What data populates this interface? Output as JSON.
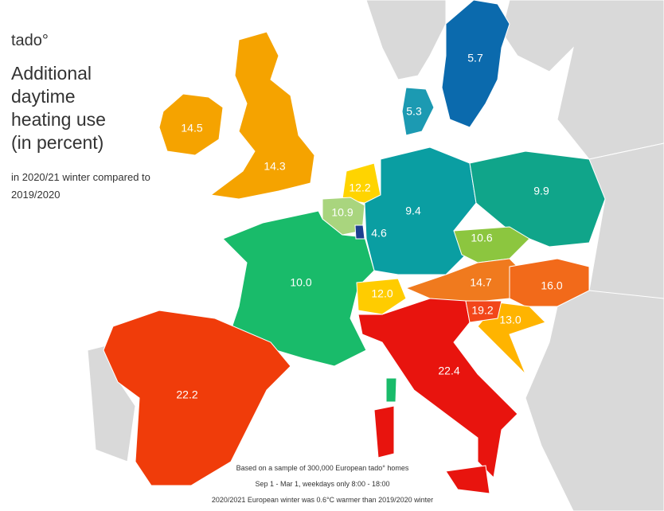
{
  "brand": "tado°",
  "title": "Additional daytime heating use (in percent)",
  "subtitle": "in 2020/21 winter compared to 2019/2020",
  "footnotes": [
    "Based on a sample of 300,000 European tado° homes",
    "Sep 1 - Mar 1, weekdays only 8:00 - 18:00",
    "2020/2021 European winter was 0.6°C warmer than 2019/2020 winter"
  ],
  "regions": [
    {
      "label": "14.5",
      "color": "#f5a300"
    },
    {
      "label": "14.3",
      "color": "#f5a300"
    },
    {
      "label": "5.7",
      "color": "#0b6aad"
    },
    {
      "label": "5.3",
      "color": "#1c9ab2"
    },
    {
      "label": "12.2",
      "color": "#ffd400"
    },
    {
      "label": "10.9",
      "color": "#a9d57e"
    },
    {
      "label": "4.6",
      "color": "#1d3f8f"
    },
    {
      "label": "9.4",
      "color": "#0a9ea2"
    },
    {
      "label": "9.9",
      "color": "#10a58a"
    },
    {
      "label": "10.6",
      "color": "#8cc63f"
    },
    {
      "label": "10.0",
      "color": "#19bb6a"
    },
    {
      "label": "12.0",
      "color": "#ffcc00"
    },
    {
      "label": "14.7",
      "color": "#f07a1e"
    },
    {
      "label": "16.0",
      "color": "#f26a1a"
    },
    {
      "label": "19.2",
      "color": "#f2461a"
    },
    {
      "label": "13.0",
      "color": "#ffb400"
    },
    {
      "label": "22.4",
      "color": "#e8140e"
    },
    {
      "label": "22.2",
      "color": "#f03c0a"
    }
  ]
}
